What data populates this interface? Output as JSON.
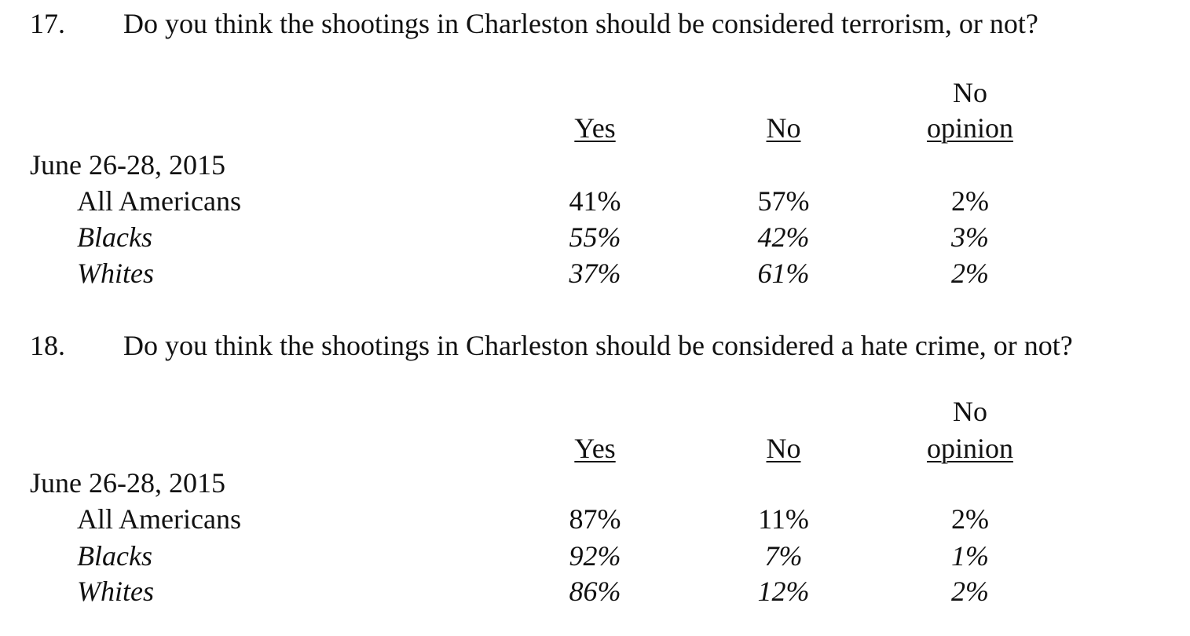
{
  "questions": [
    {
      "number": "17.",
      "text": "Do you think the shootings in Charleston should be considered terrorism, or not?",
      "headers": {
        "yes": "Yes",
        "no": "No",
        "no_opinion_line1": "No",
        "no_opinion_line2": "opinion"
      },
      "date": "June 26-28, 2015",
      "rows": [
        {
          "label": "All Americans",
          "yes": "41%",
          "no": "57%",
          "no_opinion": "2%"
        },
        {
          "label": "Blacks",
          "yes": "55%",
          "no": "42%",
          "no_opinion": "3%"
        },
        {
          "label": "Whites",
          "yes": "37%",
          "no": "61%",
          "no_opinion": "2%"
        }
      ]
    },
    {
      "number": "18.",
      "text": "Do you think the shootings in Charleston should be considered a hate crime, or not?",
      "headers": {
        "yes": "Yes",
        "no": "No",
        "no_opinion_line1": "No",
        "no_opinion_line2": "opinion"
      },
      "date": "June 26-28, 2015",
      "rows": [
        {
          "label": "All Americans",
          "yes": "87%",
          "no": "11%",
          "no_opinion": "2%"
        },
        {
          "label": "Blacks",
          "yes": "92%",
          "no": "7%",
          "no_opinion": "1%"
        },
        {
          "label": "Whites",
          "yes": "86%",
          "no": "12%",
          "no_opinion": "2%"
        }
      ]
    }
  ]
}
